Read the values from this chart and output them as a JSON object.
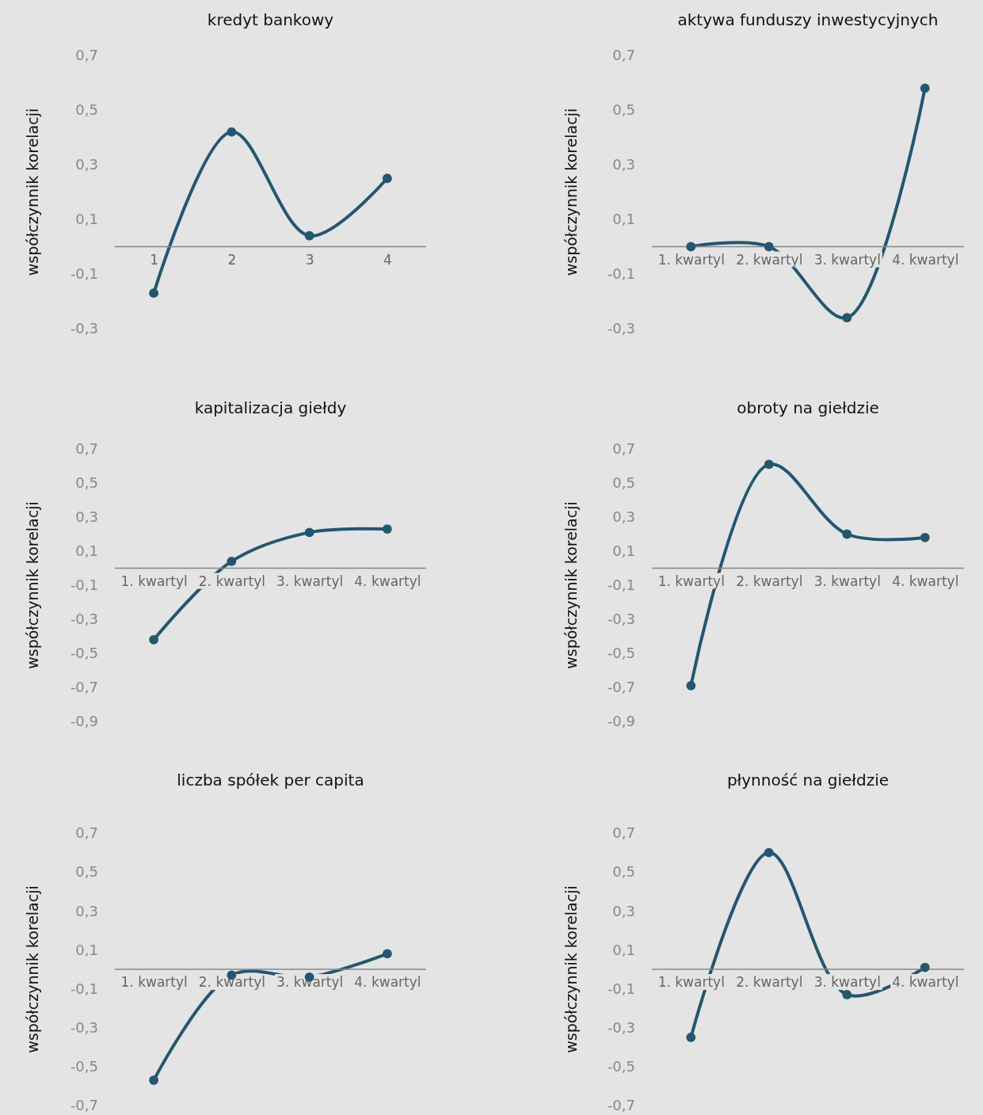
{
  "chart_data": [
    {
      "type": "line",
      "title": "kredyt bankowy",
      "ylabel": "współczynnik korelacji",
      "categories": [
        "1",
        "2",
        "3",
        "4"
      ],
      "series": [
        {
          "color": "#25566f",
          "values": [
            -0.17,
            0.42,
            0.04,
            0.25
          ]
        }
      ],
      "ylim": [
        -0.3,
        0.7
      ],
      "yticks": [
        {
          "value": 0.7,
          "label": "0,7"
        },
        {
          "value": 0.5,
          "label": "0,5"
        },
        {
          "value": 0.3,
          "label": "0,3"
        },
        {
          "value": 0.1,
          "label": "0,1"
        },
        {
          "value": -0.1,
          "label": "-0,1"
        },
        {
          "value": -0.3,
          "label": "-0,3"
        }
      ],
      "marker": "circle"
    },
    {
      "type": "line",
      "title": "aktywa funduszy inwestycyjnych",
      "ylabel": "współczynnik korelacji",
      "categories": [
        "1. kwartyl",
        "2. kwartyl",
        "3. kwartyl",
        "4. kwartyl"
      ],
      "series": [
        {
          "color": "#25566f",
          "values": [
            0.0,
            0.0,
            -0.26,
            0.58
          ]
        }
      ],
      "ylim": [
        -0.3,
        0.7
      ],
      "yticks": [
        {
          "value": 0.7,
          "label": "0,7"
        },
        {
          "value": 0.5,
          "label": "0,5"
        },
        {
          "value": 0.3,
          "label": "0,3"
        },
        {
          "value": 0.1,
          "label": "0,1"
        },
        {
          "value": -0.1,
          "label": "-0,1"
        },
        {
          "value": -0.3,
          "label": "-0,3"
        }
      ],
      "marker": "circle"
    },
    {
      "type": "line",
      "title": "kapitalizacja giełdy",
      "ylabel": "współczynnik korelacji",
      "categories": [
        "1. kwartyl",
        "2. kwartyl",
        "3. kwartyl",
        "4. kwartyl"
      ],
      "series": [
        {
          "color": "#25566f",
          "values": [
            -0.42,
            0.04,
            0.21,
            0.23
          ]
        }
      ],
      "ylim": [
        -0.9,
        0.7
      ],
      "yticks": [
        {
          "value": 0.7,
          "label": "0,7"
        },
        {
          "value": 0.5,
          "label": "0,5"
        },
        {
          "value": 0.3,
          "label": "0,3"
        },
        {
          "value": 0.1,
          "label": "0,1"
        },
        {
          "value": -0.1,
          "label": "-0,1"
        },
        {
          "value": -0.3,
          "label": "-0,3"
        },
        {
          "value": -0.5,
          "label": "-0,5"
        },
        {
          "value": -0.7,
          "label": "-0,7"
        },
        {
          "value": -0.9,
          "label": "-0,9"
        }
      ],
      "marker": "circle"
    },
    {
      "type": "line",
      "title": "obroty na giełdzie",
      "ylabel": "współczynnik korelacji",
      "categories": [
        "1. kwartyl",
        "2. kwartyl",
        "3. kwartyl",
        "4. kwartyl"
      ],
      "series": [
        {
          "color": "#25566f",
          "values": [
            -0.69,
            0.61,
            0.2,
            0.18
          ]
        }
      ],
      "ylim": [
        -0.9,
        0.7
      ],
      "yticks": [
        {
          "value": 0.7,
          "label": "0,7"
        },
        {
          "value": 0.5,
          "label": "0,5"
        },
        {
          "value": 0.3,
          "label": "0,3"
        },
        {
          "value": 0.1,
          "label": "0,1"
        },
        {
          "value": -0.1,
          "label": "-0,1"
        },
        {
          "value": -0.3,
          "label": "-0,3"
        },
        {
          "value": -0.5,
          "label": "-0,5"
        },
        {
          "value": -0.7,
          "label": "-0,7"
        },
        {
          "value": -0.9,
          "label": "-0,9"
        }
      ],
      "marker": "circle"
    },
    {
      "type": "line",
      "title": "liczba spółek per capita",
      "ylabel": "współczynnik korelacji",
      "categories": [
        "1. kwartyl",
        "2. kwartyl",
        "3. kwartyl",
        "4. kwartyl"
      ],
      "series": [
        {
          "color": "#25566f",
          "values": [
            -0.57,
            -0.03,
            -0.04,
            0.08
          ]
        }
      ],
      "ylim": [
        -0.7,
        0.7
      ],
      "yticks": [
        {
          "value": 0.7,
          "label": "0,7"
        },
        {
          "value": 0.5,
          "label": "0,5"
        },
        {
          "value": 0.3,
          "label": "0,3"
        },
        {
          "value": 0.1,
          "label": "0,1"
        },
        {
          "value": -0.1,
          "label": "-0,1"
        },
        {
          "value": -0.3,
          "label": "-0,3"
        },
        {
          "value": -0.5,
          "label": "-0,5"
        },
        {
          "value": -0.7,
          "label": "-0,7"
        }
      ],
      "marker": "circle"
    },
    {
      "type": "line",
      "title": "płynność na giełdzie",
      "ylabel": "współczynnik korelacji",
      "categories": [
        "1. kwartyl",
        "2. kwartyl",
        "3. kwartyl",
        "4. kwartyl"
      ],
      "series": [
        {
          "color": "#25566f",
          "values": [
            -0.35,
            0.6,
            -0.13,
            0.01
          ]
        }
      ],
      "ylim": [
        -0.7,
        0.7
      ],
      "yticks": [
        {
          "value": 0.7,
          "label": "0,7"
        },
        {
          "value": 0.5,
          "label": "0,5"
        },
        {
          "value": 0.3,
          "label": "0,3"
        },
        {
          "value": 0.1,
          "label": "0,1"
        },
        {
          "value": -0.1,
          "label": "-0,1"
        },
        {
          "value": -0.3,
          "label": "-0,3"
        },
        {
          "value": -0.5,
          "label": "-0,5"
        },
        {
          "value": -0.7,
          "label": "-0,7"
        }
      ],
      "marker": "circle"
    }
  ]
}
